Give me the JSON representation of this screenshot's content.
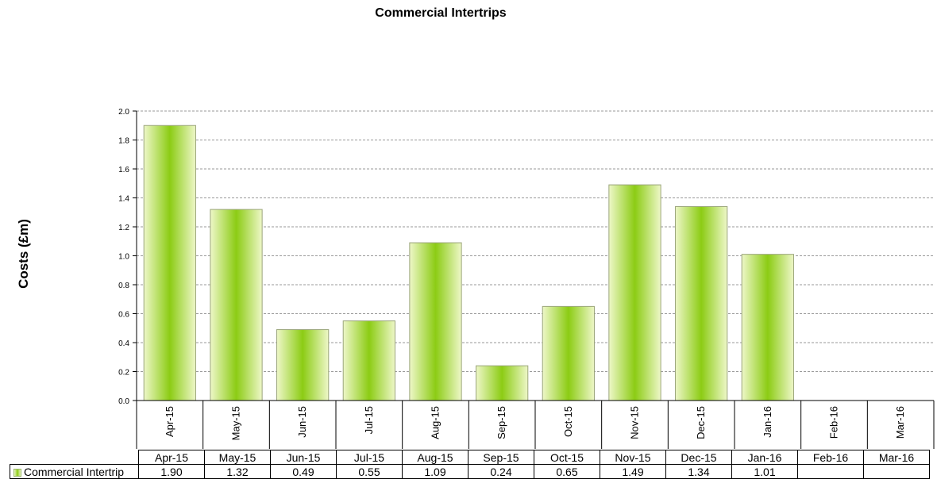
{
  "chart_data": {
    "type": "bar",
    "title": "Commercial Intertrips",
    "ylabel": "Costs (£m)",
    "xlabel": "",
    "categories": [
      "Apr-15",
      "May-15",
      "Jun-15",
      "Jul-15",
      "Aug-15",
      "Sep-15",
      "Oct-15",
      "Nov-15",
      "Dec-15",
      "Jan-16",
      "Feb-16",
      "Mar-16"
    ],
    "series": [
      {
        "name": "Commercial Intertrip",
        "values": [
          1.9,
          1.32,
          0.49,
          0.55,
          1.09,
          0.24,
          0.65,
          1.49,
          1.34,
          1.01,
          null,
          null
        ],
        "labels": [
          "1.90",
          "1.32",
          "0.49",
          "0.55",
          "1.09",
          "0.24",
          "0.65",
          "1.49",
          "1.34",
          "1.01",
          "",
          ""
        ]
      }
    ],
    "ylim": [
      0,
      2.0
    ],
    "yticks": [
      "0.0",
      "0.2",
      "0.4",
      "0.6",
      "0.8",
      "1.0",
      "1.2",
      "1.4",
      "1.6",
      "1.8",
      "2.0"
    ],
    "grid": true,
    "legend": "data-table",
    "bar_color": "#8ccc14"
  }
}
